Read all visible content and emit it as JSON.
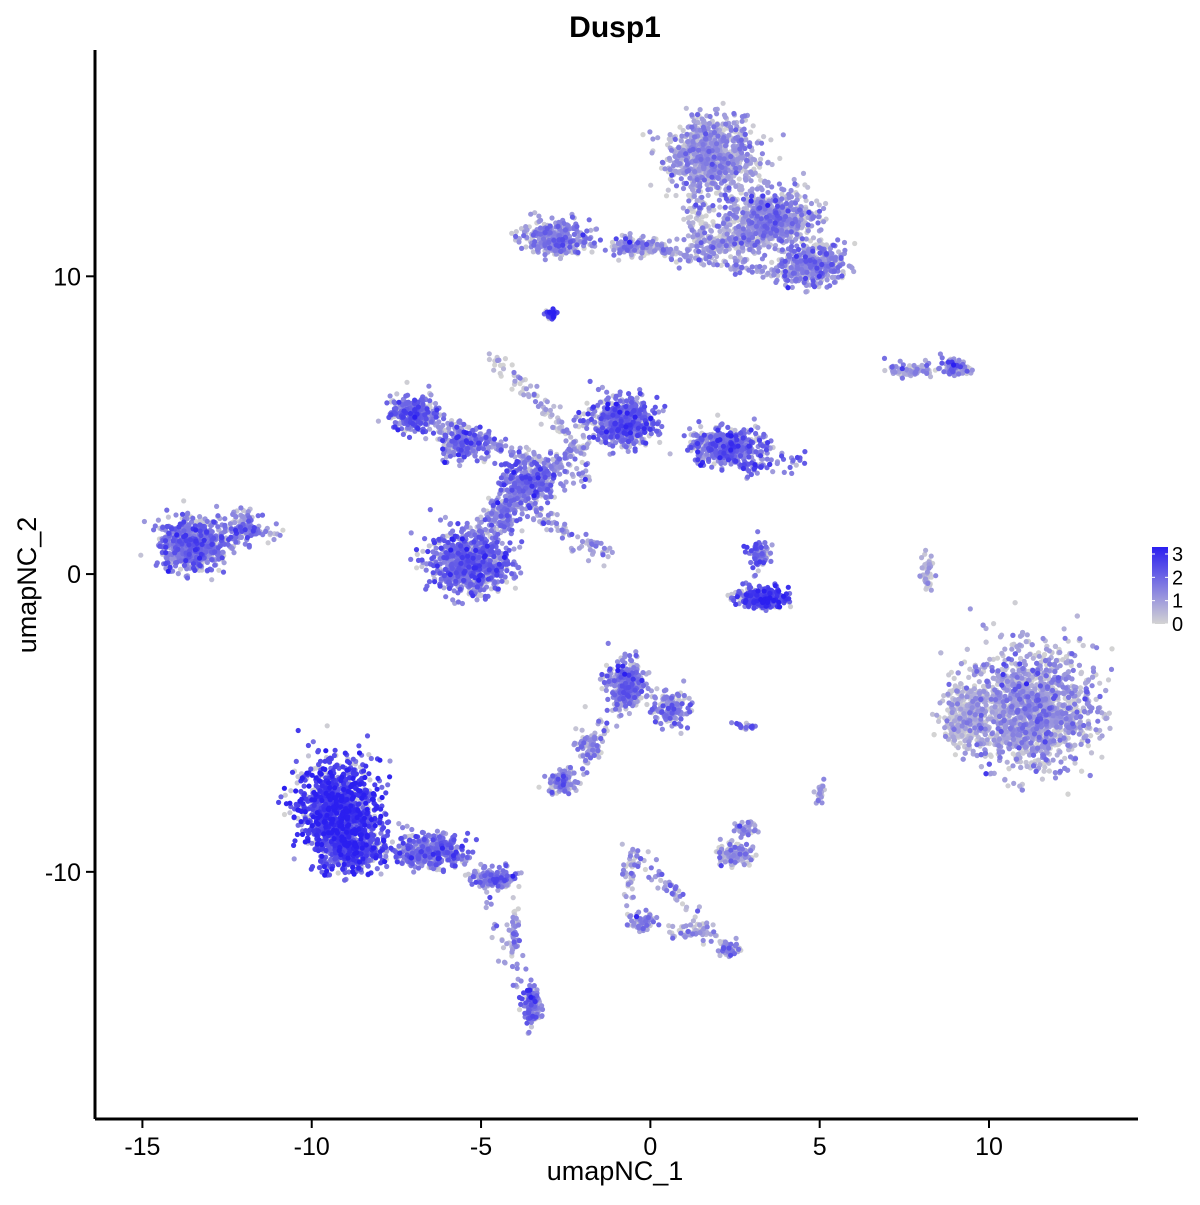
{
  "chart_data": {
    "type": "scatter",
    "title": "Dusp1",
    "xlabel": "umapNC_1",
    "ylabel": "umapNC_2",
    "xlim": [
      -16.4,
      14.4
    ],
    "ylim": [
      -18.3,
      17.6
    ],
    "x_ticks": [
      -15,
      -10,
      -5,
      0,
      5,
      10
    ],
    "x_tick_labels": [
      "-15",
      "-10",
      "-5",
      "0",
      "5",
      "10"
    ],
    "y_ticks": [
      -10,
      0,
      10
    ],
    "y_tick_labels": [
      "-10",
      "0",
      "10"
    ],
    "grid": false,
    "legend": {
      "position": "right",
      "type": "colorbar",
      "labels": [
        "3",
        "2",
        "1",
        "0"
      ],
      "values": [
        3,
        2,
        1,
        0
      ],
      "range": [
        0,
        3.3
      ],
      "low_color": "#d3d3d3",
      "high_color": "#2b1ff0"
    },
    "colors": {
      "low": "#d3d3d3",
      "high": "#2b1ff0"
    },
    "clusters": [
      {
        "x": 1.8,
        "y": 14.0,
        "sx": 1.1,
        "sy": 1.1,
        "n": 900,
        "expr": 0.9
      },
      {
        "x": 3.6,
        "y": 12.0,
        "sx": 1.2,
        "sy": 0.8,
        "n": 700,
        "expr": 1.1
      },
      {
        "x": 4.8,
        "y": 10.4,
        "sx": 0.9,
        "sy": 0.6,
        "n": 400,
        "expr": 1.2
      },
      {
        "x": 2.4,
        "y": 11.2,
        "sx": 1.0,
        "sy": 0.5,
        "n": 200,
        "expr": 0.9
      },
      {
        "x": -2.8,
        "y": 11.3,
        "sx": 0.9,
        "sy": 0.5,
        "n": 350,
        "expr": 1.3
      },
      {
        "x": -0.5,
        "y": 11.0,
        "sx": 1.0,
        "sy": 0.3,
        "n": 120,
        "expr": 1.0
      },
      {
        "x": -2.9,
        "y": 8.7,
        "sx": 0.15,
        "sy": 0.15,
        "n": 25,
        "expr": 2.6
      },
      {
        "x": -7.0,
        "y": 5.4,
        "sx": 0.6,
        "sy": 0.5,
        "n": 300,
        "expr": 1.8
      },
      {
        "x": -5.5,
        "y": 4.4,
        "sx": 0.7,
        "sy": 0.5,
        "n": 220,
        "expr": 1.6
      },
      {
        "x": -3.6,
        "y": 3.1,
        "sx": 0.8,
        "sy": 0.7,
        "n": 350,
        "expr": 1.6
      },
      {
        "x": -0.8,
        "y": 5.1,
        "sx": 0.9,
        "sy": 0.7,
        "n": 600,
        "expr": 1.8
      },
      {
        "x": 2.3,
        "y": 4.3,
        "sx": 1.0,
        "sy": 0.5,
        "n": 500,
        "expr": 1.7
      },
      {
        "x": -5.3,
        "y": 0.4,
        "sx": 1.1,
        "sy": 0.9,
        "n": 900,
        "expr": 1.7
      },
      {
        "x": -4.3,
        "y": 2.0,
        "sx": 0.4,
        "sy": 0.6,
        "n": 120,
        "expr": 1.3
      },
      {
        "x": -13.5,
        "y": 1.0,
        "sx": 0.9,
        "sy": 0.7,
        "n": 800,
        "expr": 1.5
      },
      {
        "x": -12.0,
        "y": 1.6,
        "sx": 0.4,
        "sy": 0.5,
        "n": 100,
        "expr": 1.4
      },
      {
        "x": 3.3,
        "y": -0.8,
        "sx": 0.7,
        "sy": 0.3,
        "n": 300,
        "expr": 2.4
      },
      {
        "x": 3.2,
        "y": 0.7,
        "sx": 0.3,
        "sy": 0.5,
        "n": 70,
        "expr": 1.7
      },
      {
        "x": 9.0,
        "y": 6.9,
        "sx": 0.4,
        "sy": 0.25,
        "n": 90,
        "expr": 1.2
      },
      {
        "x": 7.7,
        "y": 6.8,
        "sx": 0.5,
        "sy": 0.15,
        "n": 40,
        "expr": 0.8
      },
      {
        "x": 8.2,
        "y": 0.1,
        "sx": 0.2,
        "sy": 0.6,
        "n": 40,
        "expr": 0.6
      },
      {
        "x": 11.3,
        "y": -4.5,
        "sx": 1.7,
        "sy": 1.7,
        "n": 2200,
        "expr": 0.9
      },
      {
        "x": 9.3,
        "y": -4.8,
        "sx": 0.6,
        "sy": 0.9,
        "n": 350,
        "expr": 0.35
      },
      {
        "x": -0.7,
        "y": -3.7,
        "sx": 0.5,
        "sy": 0.7,
        "n": 350,
        "expr": 1.4
      },
      {
        "x": 0.6,
        "y": -4.5,
        "sx": 0.5,
        "sy": 0.5,
        "n": 150,
        "expr": 1.4
      },
      {
        "x": -1.8,
        "y": -5.7,
        "sx": 0.4,
        "sy": 0.6,
        "n": 60,
        "expr": 1.2
      },
      {
        "x": -2.6,
        "y": -7.0,
        "sx": 0.4,
        "sy": 0.3,
        "n": 120,
        "expr": 1.1
      },
      {
        "x": 2.5,
        "y": -9.4,
        "sx": 0.5,
        "sy": 0.3,
        "n": 150,
        "expr": 0.7
      },
      {
        "x": 2.8,
        "y": -8.6,
        "sx": 0.3,
        "sy": 0.3,
        "n": 40,
        "expr": 1.0
      },
      {
        "x": 2.8,
        "y": -5.1,
        "sx": 0.25,
        "sy": 0.1,
        "n": 20,
        "expr": 1.8
      },
      {
        "x": 5.0,
        "y": -7.3,
        "sx": 0.15,
        "sy": 0.3,
        "n": 25,
        "expr": 1.0
      },
      {
        "x": -9.2,
        "y": -7.8,
        "sx": 1.1,
        "sy": 1.3,
        "n": 1100,
        "expr": 2.6
      },
      {
        "x": -8.8,
        "y": -9.2,
        "sx": 1.0,
        "sy": 0.7,
        "n": 500,
        "expr": 2.3
      },
      {
        "x": -6.5,
        "y": -9.3,
        "sx": 1.0,
        "sy": 0.5,
        "n": 400,
        "expr": 1.7
      },
      {
        "x": -4.6,
        "y": -10.2,
        "sx": 0.6,
        "sy": 0.3,
        "n": 150,
        "expr": 1.6
      },
      {
        "x": -3.5,
        "y": -14.5,
        "sx": 0.25,
        "sy": 0.6,
        "n": 130,
        "expr": 1.5
      },
      {
        "x": -4.0,
        "y": -12.0,
        "sx": 0.15,
        "sy": 0.9,
        "n": 40,
        "expr": 1.1
      },
      {
        "x": -0.2,
        "y": -11.7,
        "sx": 0.4,
        "sy": 0.3,
        "n": 60,
        "expr": 1.2
      },
      {
        "x": -0.6,
        "y": -10.0,
        "sx": 0.2,
        "sy": 0.8,
        "n": 40,
        "expr": 0.9
      },
      {
        "x": 2.3,
        "y": -12.6,
        "sx": 0.3,
        "sy": 0.2,
        "n": 50,
        "expr": 1.3
      },
      {
        "x": 1.2,
        "y": -12.0,
        "sx": 0.6,
        "sy": 0.25,
        "n": 40,
        "expr": 0.9
      }
    ],
    "bridges": [
      {
        "from": [
          -0.5,
          11.0
        ],
        "to": [
          4.5,
          10.0
        ],
        "n": 140,
        "expr": 1.0
      },
      {
        "from": [
          1.5,
          12.5
        ],
        "to": [
          1.3,
          11.0
        ],
        "n": 60,
        "expr": 0.5
      },
      {
        "from": [
          -1.6,
          3.6
        ],
        "to": [
          -4.6,
          7.4
        ],
        "n": 90,
        "expr": 0.5
      },
      {
        "from": [
          -2.0,
          3.2
        ],
        "to": [
          -7.0,
          5.4
        ],
        "n": 140,
        "expr": 1.1
      },
      {
        "from": [
          -3.7,
          2.2
        ],
        "to": [
          -1.2,
          0.6
        ],
        "n": 80,
        "expr": 1.0
      },
      {
        "from": [
          -5.3,
          1.2
        ],
        "to": [
          -2.0,
          4.5
        ],
        "n": 140,
        "expr": 1.1
      },
      {
        "from": [
          -12.5,
          1.4
        ],
        "to": [
          -10.8,
          1.4
        ],
        "n": 40,
        "expr": 1.3
      },
      {
        "from": [
          -5.3,
          -9.5
        ],
        "to": [
          -3.5,
          -14.5
        ],
        "n": 50,
        "expr": 1.2
      },
      {
        "from": [
          -0.6,
          -9.2
        ],
        "to": [
          2.3,
          -12.6
        ],
        "n": 70,
        "expr": 1.0
      },
      {
        "from": [
          -0.6,
          -3.8
        ],
        "to": [
          -2.4,
          -6.8
        ],
        "n": 50,
        "expr": 1.2
      },
      {
        "from": [
          7.0,
          6.9
        ],
        "to": [
          9.4,
          6.9
        ],
        "n": 40,
        "expr": 0.9
      },
      {
        "from": [
          4.5,
          3.8
        ],
        "to": [
          2.5,
          3.5
        ],
        "n": 50,
        "expr": 1.6
      }
    ]
  }
}
